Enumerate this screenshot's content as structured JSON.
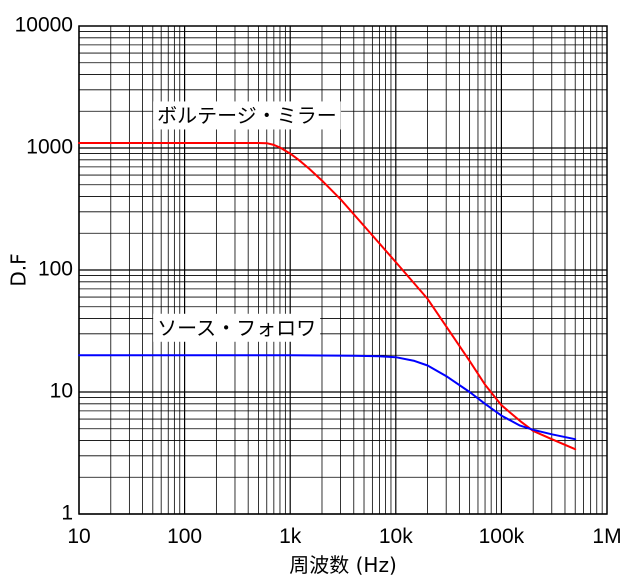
{
  "chart_data": {
    "type": "line",
    "xscale": "log",
    "yscale": "log",
    "xlim": [
      10,
      1000000
    ],
    "ylim": [
      1,
      10000
    ],
    "grid": true,
    "xticks": [
      {
        "value": 10,
        "label": "10"
      },
      {
        "value": 100,
        "label": "100"
      },
      {
        "value": 1000,
        "label": "1k"
      },
      {
        "value": 10000,
        "label": "10k"
      },
      {
        "value": 100000,
        "label": "100k"
      },
      {
        "value": 1000000,
        "label": "1M"
      }
    ],
    "yticks": [
      {
        "value": 1,
        "label": "1"
      },
      {
        "value": 10,
        "label": "10"
      },
      {
        "value": 100,
        "label": "100"
      },
      {
        "value": 1000,
        "label": "1000"
      },
      {
        "value": 10000,
        "label": "10000"
      }
    ],
    "xlabel": "周波数 (Hz)",
    "ylabel": "D.F",
    "series": [
      {
        "name": "ボルテージ・ミラー",
        "color": "#ff0000",
        "x": [
          10,
          100,
          500,
          600,
          700,
          800,
          1000,
          1200,
          1500,
          2000,
          3000,
          5000,
          10000,
          20000,
          50000,
          70000,
          100000,
          150000,
          200000,
          300000,
          500000
        ],
        "y": [
          1100,
          1100,
          1100,
          1095,
          1060,
          1010,
          900,
          800,
          680,
          540,
          380,
          230,
          116,
          58,
          18,
          11.5,
          7.8,
          5.8,
          4.8,
          4.1,
          3.4
        ]
      },
      {
        "name": "ソース・フォロワ",
        "color": "#0000ff",
        "x": [
          10,
          100,
          1000,
          4000,
          7000,
          10000,
          15000,
          20000,
          30000,
          50000,
          70000,
          100000,
          150000,
          200000,
          300000,
          500000
        ],
        "y": [
          20,
          20,
          20,
          19.8,
          19.6,
          19.3,
          18,
          16.5,
          13.5,
          10,
          8,
          6.4,
          5.3,
          4.9,
          4.5,
          4.1
        ]
      }
    ]
  }
}
